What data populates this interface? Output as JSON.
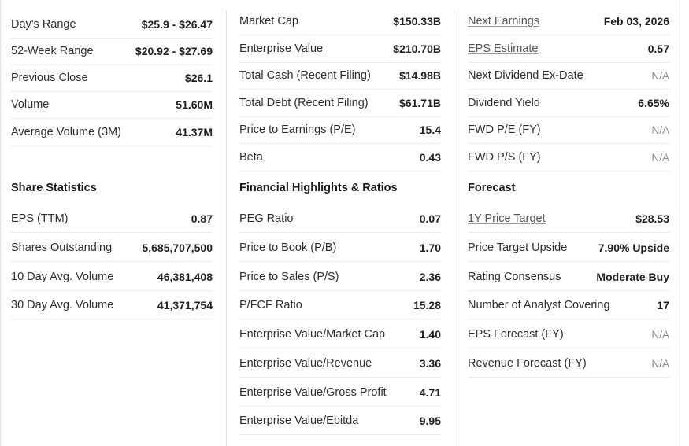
{
  "stats": {
    "days_range": {
      "label": "Day's Range",
      "value": "$25.9 - $26.47"
    },
    "week52_range": {
      "label": "52-Week Range",
      "value": "$20.92 - $27.69"
    },
    "previous_close": {
      "label": "Previous Close",
      "value": "$26.1"
    },
    "volume": {
      "label": "Volume",
      "value": "51.60M"
    },
    "avg_volume": {
      "label": "Average Volume (3M)",
      "value": "41.37M"
    }
  },
  "share_statistics": {
    "title": "Share Statistics",
    "eps_ttm": {
      "label": "EPS (TTM)",
      "value": "0.87"
    },
    "shares_outstanding": {
      "label": "Shares Outstanding",
      "value": "5,685,707,500"
    },
    "avg_volume_10d": {
      "label": "10 Day Avg. Volume",
      "value": "46,381,408"
    },
    "avg_volume_30d": {
      "label": "30 Day Avg. Volume",
      "value": "41,371,754"
    }
  },
  "valuation": {
    "market_cap": {
      "label": "Market Cap",
      "value": "$150.33B"
    },
    "enterprise_value": {
      "label": "Enterprise Value",
      "value": "$210.70B"
    },
    "total_cash": {
      "label": "Total Cash (Recent Filing)",
      "value": "$14.98B"
    },
    "total_debt": {
      "label": "Total Debt (Recent Filing)",
      "value": "$61.71B"
    },
    "pe_ratio": {
      "label": "Price to Earnings (P/E)",
      "value": "15.4"
    },
    "beta": {
      "label": "Beta",
      "value": "0.43"
    }
  },
  "financial_highlights": {
    "title": "Financial Highlights & Ratios",
    "peg": {
      "label": "PEG Ratio",
      "value": "0.07"
    },
    "pb": {
      "label": "Price to Book (P/B)",
      "value": "1.70"
    },
    "ps": {
      "label": "Price to Sales (P/S)",
      "value": "2.36"
    },
    "pfcf": {
      "label": "P/FCF Ratio",
      "value": "15.28"
    },
    "ev_mcap": {
      "label": "Enterprise Value/Market Cap",
      "value": "1.40"
    },
    "ev_rev": {
      "label": "Enterprise Value/Revenue",
      "value": "3.36"
    },
    "ev_gp": {
      "label": "Enterprise Value/Gross Profit",
      "value": "4.71"
    },
    "ev_ebitda": {
      "label": "Enterprise Value/Ebitda",
      "value": "9.95"
    }
  },
  "dividends": {
    "next_earnings": {
      "label": "Next Earnings",
      "value": "Feb 03, 2026"
    },
    "eps_estimate": {
      "label": "EPS Estimate",
      "value": "0.57"
    },
    "next_dividend": {
      "label": "Next Dividend Ex-Date",
      "value": "N/A"
    },
    "dividend_yield": {
      "label": "Dividend Yield",
      "value": "6.65%"
    },
    "fwd_pe": {
      "label": "FWD P/E (FY)",
      "value": "N/A"
    },
    "fwd_ps": {
      "label": "FWD P/S (FY)",
      "value": "N/A"
    }
  },
  "forecast": {
    "title": "Forecast",
    "price_target": {
      "label": "1Y Price Target",
      "value": "$28.53"
    },
    "upside": {
      "label": "Price Target Upside",
      "value": "7.90% Upside"
    },
    "rating": {
      "label": "Rating Consensus",
      "value": "Moderate Buy"
    },
    "analysts": {
      "label": "Number of Analyst Covering",
      "value": "17"
    },
    "eps_forecast": {
      "label": "EPS Forecast (FY)",
      "value": "N/A"
    },
    "revenue_forecast": {
      "label": "Revenue Forecast (FY)",
      "value": "N/A"
    }
  }
}
